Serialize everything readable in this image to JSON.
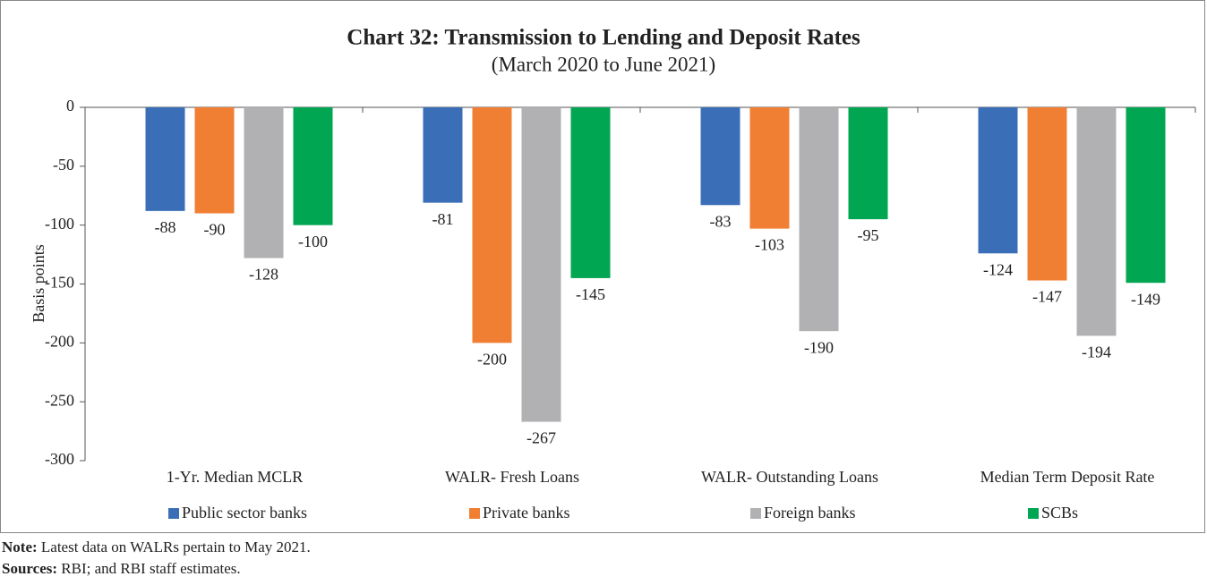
{
  "chart_data": {
    "type": "bar",
    "title": "Chart 32: Transmission to Lending and Deposit Rates",
    "subtitle": "(March 2020 to June 2021)",
    "y_label": "Basis points",
    "categories": [
      "1-Yr. Median MCLR",
      "WALR- Fresh Loans",
      "WALR- Outstanding Loans",
      "Median Term Deposit Rate"
    ],
    "series": [
      {
        "name": "Public sector banks",
        "color": "#3a6fb8",
        "values": [
          -88,
          -81,
          -83,
          -124
        ]
      },
      {
        "name": "Private banks",
        "color": "#f07f33",
        "values": [
          -90,
          -200,
          -103,
          -147
        ]
      },
      {
        "name": "Foreign banks",
        "color": "#b1b1b4",
        "values": [
          -128,
          -267,
          -190,
          -194
        ]
      },
      {
        "name": "SCBs",
        "color": "#00a651",
        "values": [
          -100,
          -145,
          -95,
          -149
        ]
      }
    ],
    "ylim": [
      -300,
      0
    ],
    "yticks": [
      0,
      -50,
      -100,
      -150,
      -200,
      -250,
      -300
    ],
    "legend": "bottom"
  },
  "note": {
    "label": "Note:",
    "text": "Latest data on WALRs pertain to May 2021."
  },
  "sources": {
    "label": "Sources:",
    "text": "RBI; and RBI staff estimates."
  }
}
